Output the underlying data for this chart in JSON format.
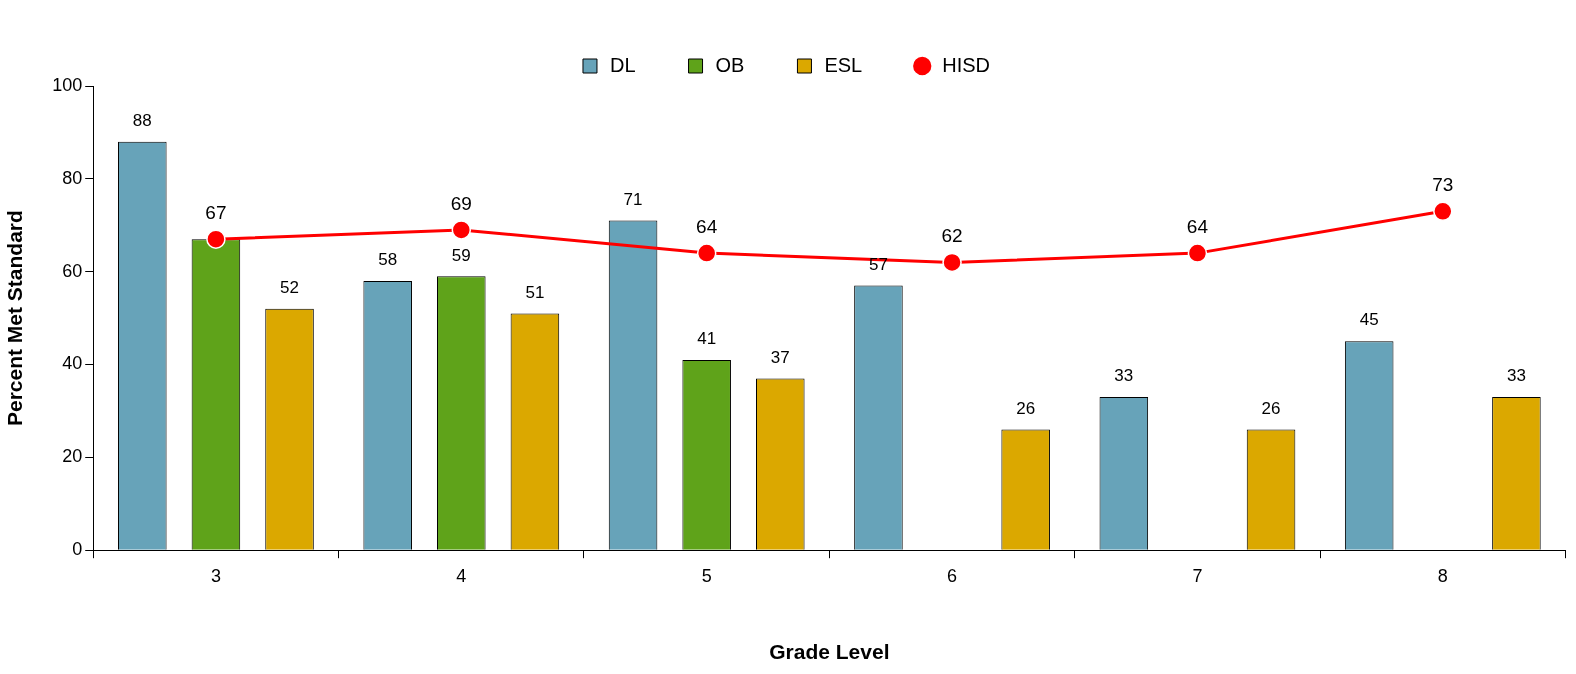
{
  "chart_data": {
    "type": "bar",
    "xlabel": "Grade Level",
    "ylabel": "Percent Met Standard",
    "categories": [
      "3",
      "4",
      "5",
      "6",
      "7",
      "8"
    ],
    "series": [
      {
        "name": "DL",
        "color": "#67a3b9",
        "values": [
          88,
          58,
          71,
          57,
          33,
          45
        ],
        "value_labels": [
          "88",
          "58",
          "71",
          "57",
          "33",
          "45"
        ]
      },
      {
        "name": "OB",
        "color": "#5fa31a",
        "values": [
          67,
          59,
          41,
          null,
          null,
          null
        ],
        "value_labels": [
          null,
          "59",
          "41",
          null,
          null,
          null
        ]
      },
      {
        "name": "ESL",
        "color": "#dba800",
        "values": [
          52,
          51,
          37,
          26,
          26,
          33
        ],
        "value_labels": [
          "52",
          "51",
          "37",
          "26",
          "26",
          "33"
        ]
      },
      {
        "name": "HISD",
        "type": "line",
        "color": "#ff0000",
        "values": [
          67,
          69,
          64,
          62,
          64,
          73
        ],
        "value_labels": [
          "67",
          "69",
          "64",
          "62",
          "64",
          "73"
        ],
        "marker": "circle",
        "line_style": "solid"
      }
    ],
    "ylim": [
      0,
      100
    ],
    "yticks": [
      0,
      20,
      40,
      60,
      80,
      100
    ],
    "grid": false,
    "legend": "top"
  }
}
